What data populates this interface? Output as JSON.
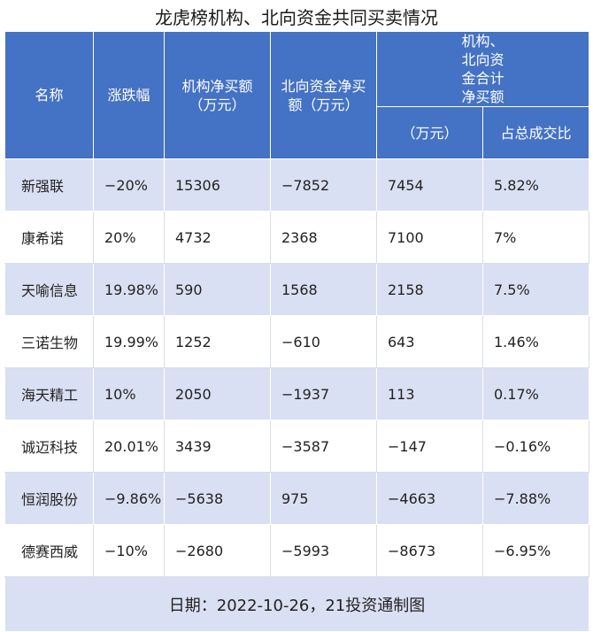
{
  "title": "龙虎榜机构、北向资金共同买卖情况",
  "headers": {
    "name": "名称",
    "change": "涨跌幅",
    "inst_net": "机构净买额（万元）",
    "north_net": "北向资金净买额（万元）",
    "combined_group": "机构、北向资金合计净买额",
    "combined_amount": "（万元）",
    "combined_ratio": "占总成交比"
  },
  "rows": [
    {
      "name": "新强联",
      "change": "−20%",
      "inst_net": "15306",
      "north_net": "−7852",
      "combined_amount": "7454",
      "combined_ratio": "5.82%"
    },
    {
      "name": "康希诺",
      "change": "20%",
      "inst_net": "4732",
      "north_net": "2368",
      "combined_amount": "7100",
      "combined_ratio": "7%"
    },
    {
      "name": "天喻信息",
      "change": "19.98%",
      "inst_net": "590",
      "north_net": "1568",
      "combined_amount": "2158",
      "combined_ratio": "7.5%"
    },
    {
      "name": "三诺生物",
      "change": "19.99%",
      "inst_net": "1252",
      "north_net": "−610",
      "combined_amount": "643",
      "combined_ratio": "1.46%"
    },
    {
      "name": "海天精工",
      "change": "10%",
      "inst_net": "2050",
      "north_net": "−1937",
      "combined_amount": "113",
      "combined_ratio": "0.17%"
    },
    {
      "name": "诚迈科技",
      "change": "20.01%",
      "inst_net": "3439",
      "north_net": "−3587",
      "combined_amount": "−147",
      "combined_ratio": "−0.16%"
    },
    {
      "name": "恒润股份",
      "change": "−9.86%",
      "inst_net": "−5638",
      "north_net": "975",
      "combined_amount": "−4663",
      "combined_ratio": "−7.88%"
    },
    {
      "name": "德赛西威",
      "change": "−10%",
      "inst_net": "−2680",
      "north_net": "−5993",
      "combined_amount": "−8673",
      "combined_ratio": "−6.95%"
    }
  ],
  "footer": "日期：2022-10-26，21投资通制图"
}
